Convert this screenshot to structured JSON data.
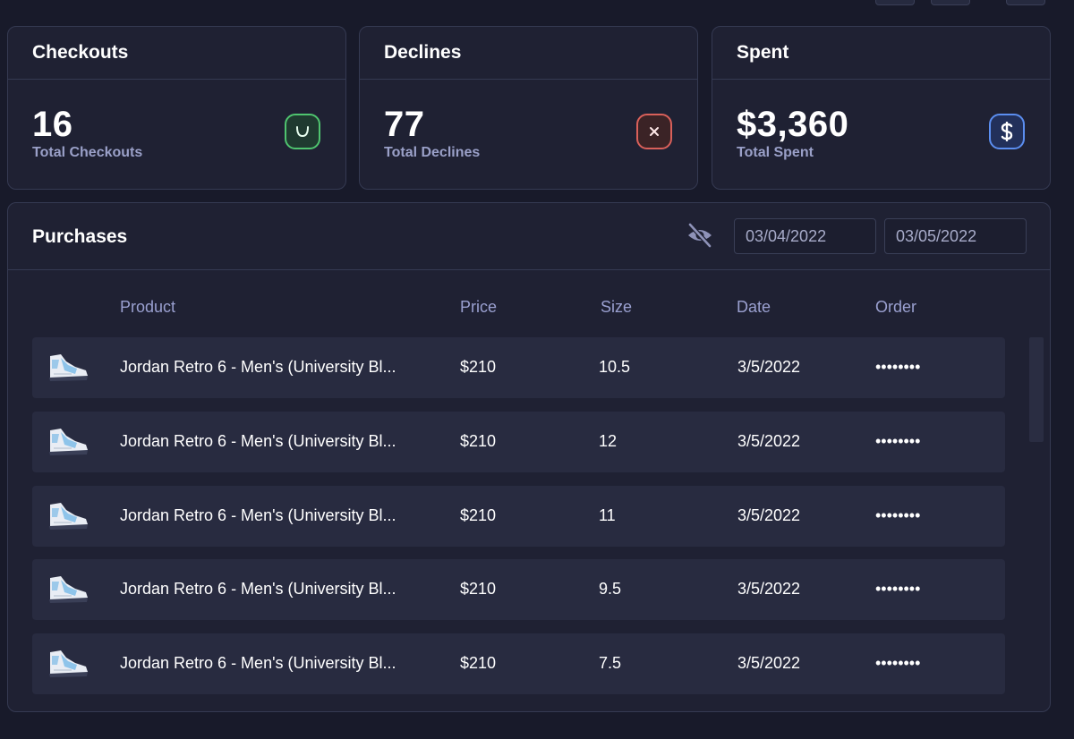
{
  "stats": {
    "checkouts": {
      "title": "Checkouts",
      "value": "16",
      "label": "Total Checkouts",
      "icon": "bag-icon",
      "color": "#4fc46f"
    },
    "declines": {
      "title": "Declines",
      "value": "77",
      "label": "Total Declines",
      "icon": "close-icon",
      "color": "#d9605a"
    },
    "spent": {
      "title": "Spent",
      "value": "$3,360",
      "label": "Total Spent",
      "icon": "dollar-icon",
      "color": "#5b8ef0"
    }
  },
  "purchases": {
    "title": "Purchases",
    "date_from": "03/04/2022",
    "date_to": "03/05/2022",
    "columns": {
      "product": "Product",
      "price": "Price",
      "size": "Size",
      "date": "Date",
      "order": "Order"
    },
    "rows": [
      {
        "product": "Jordan Retro 6 - Men's (University Bl...",
        "price": "$210",
        "size": "10.5",
        "date": "3/5/2022",
        "order": "••••••••"
      },
      {
        "product": "Jordan Retro 6 - Men's (University Bl...",
        "price": "$210",
        "size": "12",
        "date": "3/5/2022",
        "order": "••••••••"
      },
      {
        "product": "Jordan Retro 6 - Men's (University Bl...",
        "price": "$210",
        "size": "11",
        "date": "3/5/2022",
        "order": "••••••••"
      },
      {
        "product": "Jordan Retro 6 - Men's (University Bl...",
        "price": "$210",
        "size": "9.5",
        "date": "3/5/2022",
        "order": "••••••••"
      },
      {
        "product": "Jordan Retro 6 - Men's (University Bl...",
        "price": "$210",
        "size": "7.5",
        "date": "3/5/2022",
        "order": "••••••••"
      }
    ]
  }
}
